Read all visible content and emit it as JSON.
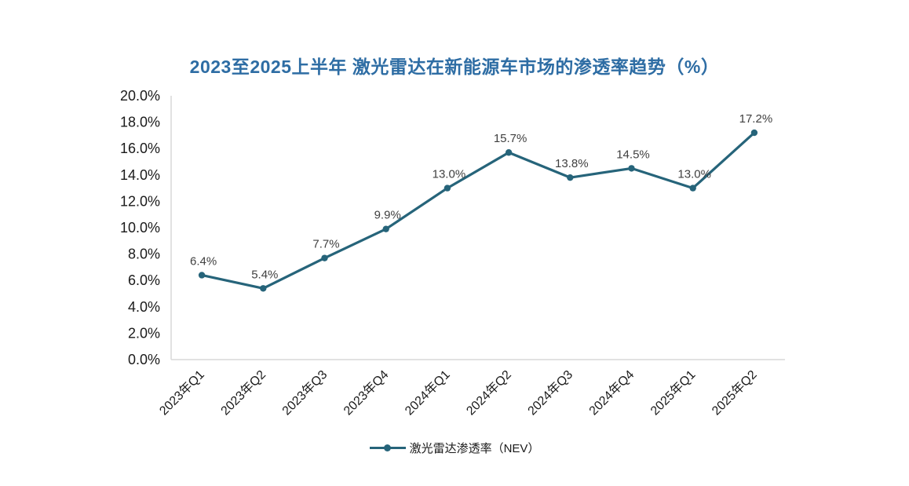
{
  "chart_data": {
    "type": "line",
    "title": "2023至2025上半年 激光雷达在新能源车市场的渗透率趋势（%）",
    "categories": [
      "2023年Q1",
      "2023年Q2",
      "2023年Q3",
      "2023年Q4",
      "2024年Q1",
      "2024年Q2",
      "2024年Q3",
      "2024年Q4",
      "2025年Q1",
      "2025年Q2"
    ],
    "series": [
      {
        "name": "激光雷达渗透率（NEV）",
        "values": [
          6.4,
          5.4,
          7.7,
          9.9,
          13.0,
          15.7,
          13.8,
          14.5,
          13.0,
          17.2
        ],
        "color": "#26647a"
      }
    ],
    "data_labels": [
      "6.4%",
      "5.4%",
      "7.7%",
      "9.9%",
      "13.0%",
      "15.7%",
      "13.8%",
      "14.5%",
      "13.0%",
      "17.2%"
    ],
    "xlabel": "",
    "ylabel": "",
    "ylim": [
      0,
      20
    ],
    "ytick_step": 2,
    "ytick_labels": [
      "0.0%",
      "2.0%",
      "4.0%",
      "6.0%",
      "8.0%",
      "10.0%",
      "12.0%",
      "14.0%",
      "16.0%",
      "18.0%",
      "20.0%"
    ],
    "grid": false,
    "legend_position": "bottom",
    "legend_label": "激光雷达渗透率（NEV）"
  },
  "style": {
    "background": "#ffffff",
    "title_color": "#2e6da4",
    "accent_color": "#26647a",
    "axis_line_color": "#d9d9d9",
    "tick_label_color": "#1a1a1a",
    "data_label_color": "#404040"
  }
}
